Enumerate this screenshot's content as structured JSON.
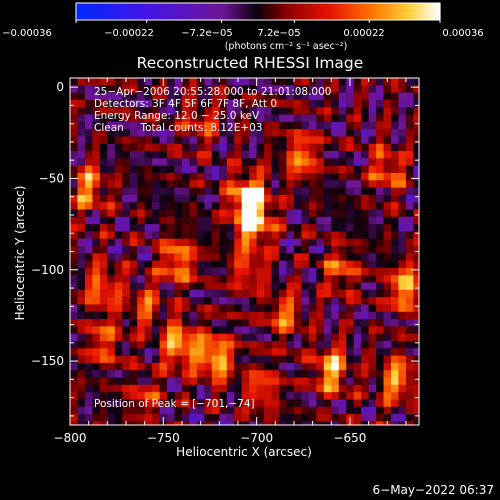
{
  "chart_data": {
    "type": "heatmap",
    "title": "Reconstructed RHESSI Image",
    "xlabel": "Heliocentric X (arcsec)",
    "ylabel": "Heliocentric Y (arcsec)",
    "xlim": [
      -800,
      -613
    ],
    "ylim": [
      -185,
      5
    ],
    "x_ticks": [
      -800,
      -750,
      -700,
      -650
    ],
    "x_tick_labels": [
      "−800",
      "−750",
      "−700",
      "−650"
    ],
    "y_ticks": [
      0,
      -50,
      -100,
      -150
    ],
    "y_tick_labels": [
      "0",
      "−50",
      "−100",
      "−150"
    ],
    "colorbar": {
      "min": -0.00036,
      "max": 0.00036,
      "ticks": [
        -0.00036,
        -0.00022,
        -7.2e-05,
        7.2e-05,
        0.00022,
        0.00036
      ],
      "tick_labels": [
        "−0.00036",
        "−0.00022",
        "−7.2e−05",
        "7.2e−05",
        "0.00022",
        "0.00036"
      ],
      "units_label": "(photons cm⁻² s⁻¹ asec⁻²)"
    },
    "annotations": [
      "25−Apr−2006 20:55:28.000 to 21:01:08.000",
      "Detectors: 3F 4F 5F 6F 7F 8F, Att 0",
      "Energy Range: 12.0 − 25.0 keV",
      "Clean     Total counts: 8.12E+03",
      "Position of Peak = [−701,−74]"
    ],
    "peak_position": [
      -701,
      -74
    ],
    "hot_spots": [
      {
        "x": -704,
        "y": -60,
        "level": 1.0
      },
      {
        "x": -702,
        "y": -74,
        "level": 0.95
      },
      {
        "x": -722,
        "y": -148,
        "level": 0.9
      },
      {
        "x": -741,
        "y": -141,
        "level": 0.85
      },
      {
        "x": -742,
        "y": -95,
        "level": 0.75
      },
      {
        "x": -790,
        "y": -55,
        "level": 0.7
      },
      {
        "x": -783,
        "y": -110,
        "level": 0.65
      },
      {
        "x": -782,
        "y": -140,
        "level": 0.55
      },
      {
        "x": -676,
        "y": -38,
        "level": 0.7
      },
      {
        "x": -685,
        "y": -125,
        "level": 0.6
      },
      {
        "x": -660,
        "y": -155,
        "level": 0.85
      },
      {
        "x": -620,
        "y": -110,
        "level": 0.85
      },
      {
        "x": -625,
        "y": -160,
        "level": 0.75
      },
      {
        "x": -630,
        "y": -45,
        "level": 0.6
      },
      {
        "x": -655,
        "y": -100,
        "level": 0.55
      },
      {
        "x": -697,
        "y": -165,
        "level": 0.55
      },
      {
        "x": -705,
        "y": -100,
        "level": 0.5
      },
      {
        "x": -730,
        "y": -20,
        "level": 0.45
      },
      {
        "x": -760,
        "y": -120,
        "level": 0.5
      },
      {
        "x": -760,
        "y": -170,
        "level": 0.4
      }
    ]
  },
  "footer": {
    "timestamp": "6−May−2022 06:37"
  }
}
